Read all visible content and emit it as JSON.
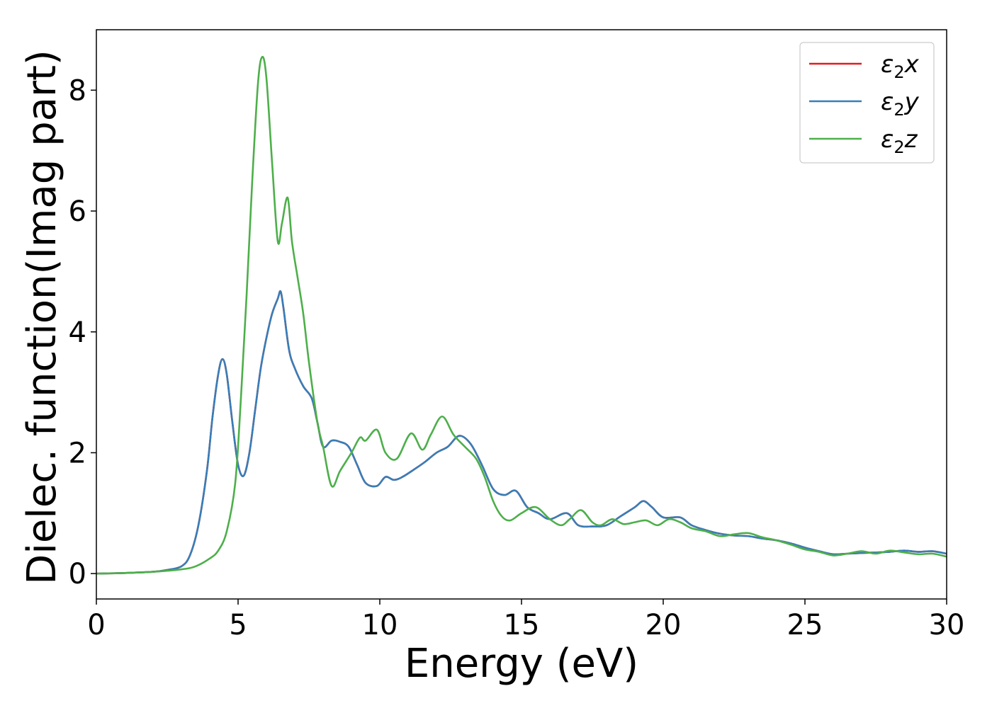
{
  "chart_data": {
    "type": "line",
    "title": "",
    "xlabel": "Energy (eV)",
    "ylabel": "Dielec. function(Imag part)",
    "xlim": [
      0,
      30
    ],
    "ylim": [
      -0.42,
      9.0
    ],
    "xticks": [
      0,
      5,
      10,
      15,
      20,
      25,
      30
    ],
    "yticks": [
      0,
      2,
      4,
      6,
      8
    ],
    "grid": false,
    "legend": "top-right",
    "series": [
      {
        "name": "ε2x",
        "legend_symbol": "ε",
        "legend_sub": "2",
        "legend_axis": "x",
        "color": "#e41a1c",
        "x": [
          0,
          1,
          2,
          2.5,
          3,
          3.3,
          3.6,
          3.9,
          4.1,
          4.3,
          4.45,
          4.6,
          4.8,
          5.0,
          5.2,
          5.4,
          5.6,
          5.8,
          6.0,
          6.2,
          6.4,
          6.5,
          6.6,
          6.8,
          7.0,
          7.3,
          7.6,
          7.8,
          8.0,
          8.3,
          8.6,
          8.9,
          9.2,
          9.5,
          9.9,
          10.2,
          10.5,
          10.8,
          11.2,
          11.6,
          12.0,
          12.4,
          12.8,
          13.2,
          13.6,
          14.0,
          14.4,
          14.8,
          15.2,
          15.6,
          16.0,
          16.6,
          17.0,
          17.5,
          18.0,
          18.5,
          19.0,
          19.3,
          19.6,
          20.0,
          20.6,
          21.0,
          21.5,
          22.0,
          22.5,
          23.0,
          23.5,
          24.0,
          24.5,
          25.0,
          25.5,
          26.0,
          26.5,
          27.0,
          27.5,
          28.0,
          28.5,
          29.0,
          29.5,
          30.0
        ],
        "y": [
          0,
          0.01,
          0.03,
          0.06,
          0.12,
          0.3,
          0.8,
          1.7,
          2.6,
          3.3,
          3.55,
          3.3,
          2.5,
          1.8,
          1.62,
          2.0,
          2.7,
          3.4,
          3.9,
          4.3,
          4.55,
          4.67,
          4.4,
          3.7,
          3.4,
          3.1,
          2.9,
          2.5,
          2.1,
          2.2,
          2.18,
          2.1,
          1.8,
          1.5,
          1.45,
          1.6,
          1.55,
          1.6,
          1.72,
          1.85,
          2.0,
          2.1,
          2.28,
          2.15,
          1.8,
          1.4,
          1.3,
          1.37,
          1.1,
          1.0,
          0.9,
          1.0,
          0.8,
          0.78,
          0.8,
          0.95,
          1.1,
          1.2,
          1.1,
          0.93,
          0.93,
          0.8,
          0.72,
          0.66,
          0.63,
          0.62,
          0.58,
          0.55,
          0.5,
          0.43,
          0.37,
          0.32,
          0.33,
          0.34,
          0.35,
          0.36,
          0.38,
          0.36,
          0.37,
          0.33
        ]
      },
      {
        "name": "ε2y",
        "legend_symbol": "ε",
        "legend_sub": "2",
        "legend_axis": "y",
        "color": "#377eb8",
        "x": [
          0,
          1,
          2,
          2.5,
          3,
          3.3,
          3.6,
          3.9,
          4.1,
          4.3,
          4.45,
          4.6,
          4.8,
          5.0,
          5.2,
          5.4,
          5.6,
          5.8,
          6.0,
          6.2,
          6.4,
          6.5,
          6.6,
          6.8,
          7.0,
          7.3,
          7.6,
          7.8,
          8.0,
          8.3,
          8.6,
          8.9,
          9.2,
          9.5,
          9.9,
          10.2,
          10.5,
          10.8,
          11.2,
          11.6,
          12.0,
          12.4,
          12.8,
          13.2,
          13.6,
          14.0,
          14.4,
          14.8,
          15.2,
          15.6,
          16.0,
          16.6,
          17.0,
          17.5,
          18.0,
          18.5,
          19.0,
          19.3,
          19.6,
          20.0,
          20.6,
          21.0,
          21.5,
          22.0,
          22.5,
          23.0,
          23.5,
          24.0,
          24.5,
          25.0,
          25.5,
          26.0,
          26.5,
          27.0,
          27.5,
          28.0,
          28.5,
          29.0,
          29.5,
          30.0
        ],
        "y": [
          0,
          0.01,
          0.03,
          0.06,
          0.12,
          0.3,
          0.8,
          1.7,
          2.6,
          3.3,
          3.55,
          3.3,
          2.5,
          1.8,
          1.62,
          2.0,
          2.7,
          3.4,
          3.9,
          4.3,
          4.55,
          4.67,
          4.4,
          3.7,
          3.4,
          3.1,
          2.9,
          2.5,
          2.1,
          2.2,
          2.18,
          2.1,
          1.8,
          1.5,
          1.45,
          1.6,
          1.55,
          1.6,
          1.72,
          1.85,
          2.0,
          2.1,
          2.28,
          2.15,
          1.8,
          1.4,
          1.3,
          1.37,
          1.1,
          1.0,
          0.9,
          1.0,
          0.8,
          0.78,
          0.8,
          0.95,
          1.1,
          1.2,
          1.1,
          0.93,
          0.93,
          0.8,
          0.72,
          0.66,
          0.63,
          0.62,
          0.58,
          0.55,
          0.5,
          0.43,
          0.37,
          0.32,
          0.33,
          0.34,
          0.35,
          0.36,
          0.38,
          0.36,
          0.37,
          0.33
        ]
      },
      {
        "name": "ε2z",
        "legend_symbol": "ε",
        "legend_sub": "2",
        "legend_axis": "z",
        "color": "#4daf4a",
        "x": [
          0,
          1,
          2,
          3,
          3.5,
          4.0,
          4.3,
          4.6,
          4.9,
          5.1,
          5.3,
          5.5,
          5.7,
          5.85,
          6.0,
          6.2,
          6.4,
          6.55,
          6.75,
          6.9,
          7.1,
          7.3,
          7.5,
          7.8,
          8.0,
          8.3,
          8.6,
          9.0,
          9.3,
          9.5,
          9.9,
          10.2,
          10.6,
          11.1,
          11.5,
          11.8,
          12.2,
          12.6,
          13.0,
          13.4,
          13.7,
          14.0,
          14.3,
          14.6,
          15.0,
          15.5,
          16.0,
          16.4,
          16.7,
          17.1,
          17.5,
          17.8,
          18.2,
          18.6,
          19.0,
          19.4,
          19.8,
          20.2,
          20.6,
          21.0,
          21.5,
          22.0,
          22.5,
          23.0,
          23.5,
          24.0,
          24.5,
          25.0,
          25.5,
          26.0,
          26.5,
          27.0,
          27.5,
          28.0,
          28.5,
          29.0,
          29.5,
          30.0
        ],
        "y": [
          0,
          0.01,
          0.03,
          0.07,
          0.12,
          0.25,
          0.38,
          0.7,
          1.5,
          2.9,
          4.6,
          6.5,
          8.1,
          8.55,
          8.2,
          6.8,
          5.5,
          5.8,
          6.22,
          5.5,
          4.9,
          4.3,
          3.5,
          2.5,
          2.1,
          1.45,
          1.7,
          2.0,
          2.25,
          2.2,
          2.38,
          2.0,
          1.9,
          2.32,
          2.05,
          2.3,
          2.6,
          2.3,
          2.1,
          1.9,
          1.6,
          1.2,
          0.95,
          0.88,
          1.0,
          1.1,
          0.9,
          0.8,
          0.9,
          1.05,
          0.85,
          0.8,
          0.9,
          0.82,
          0.85,
          0.88,
          0.8,
          0.9,
          0.85,
          0.75,
          0.7,
          0.62,
          0.65,
          0.67,
          0.6,
          0.55,
          0.48,
          0.4,
          0.36,
          0.3,
          0.33,
          0.37,
          0.33,
          0.38,
          0.35,
          0.32,
          0.33,
          0.28
        ]
      }
    ]
  }
}
